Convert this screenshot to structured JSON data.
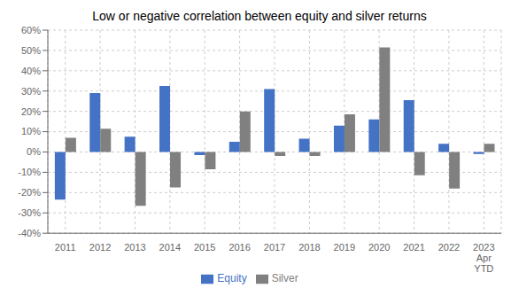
{
  "chart_data": {
    "type": "bar",
    "title": "Low or negative correlation between equity and silver returns",
    "categories": [
      "2011",
      "2012",
      "2013",
      "2014",
      "2015",
      "2016",
      "2017",
      "2018",
      "2019",
      "2020",
      "2021",
      "2022",
      "2023\nApr\nYTD"
    ],
    "series": [
      {
        "name": "Equity",
        "color": "#4472C4",
        "values": [
          -0.235,
          0.29,
          0.075,
          0.325,
          -0.015,
          0.05,
          0.31,
          0.065,
          0.13,
          0.16,
          0.255,
          0.04,
          -0.01
        ]
      },
      {
        "name": "Silver",
        "color": "#808080",
        "values": [
          0.07,
          0.115,
          -0.265,
          -0.175,
          -0.085,
          0.2,
          -0.02,
          -0.02,
          0.185,
          0.515,
          -0.115,
          -0.18,
          0.04
        ]
      }
    ],
    "ylim": [
      -0.4,
      0.6
    ],
    "yticks": [
      {
        "value": -0.4,
        "label": "-40%"
      },
      {
        "value": -0.3,
        "label": "-30%"
      },
      {
        "value": -0.2,
        "label": "-20%"
      },
      {
        "value": -0.1,
        "label": "-10%"
      },
      {
        "value": 0,
        "label": "0%"
      },
      {
        "value": 0.1,
        "label": "10%"
      },
      {
        "value": 0.2,
        "label": "20%"
      },
      {
        "value": 0.3,
        "label": "30%"
      },
      {
        "value": 0.4,
        "label": "40%"
      },
      {
        "value": 0.5,
        "label": "50%"
      },
      {
        "value": 0.6,
        "label": "60%"
      }
    ],
    "grid": true,
    "legend": "bottom"
  }
}
